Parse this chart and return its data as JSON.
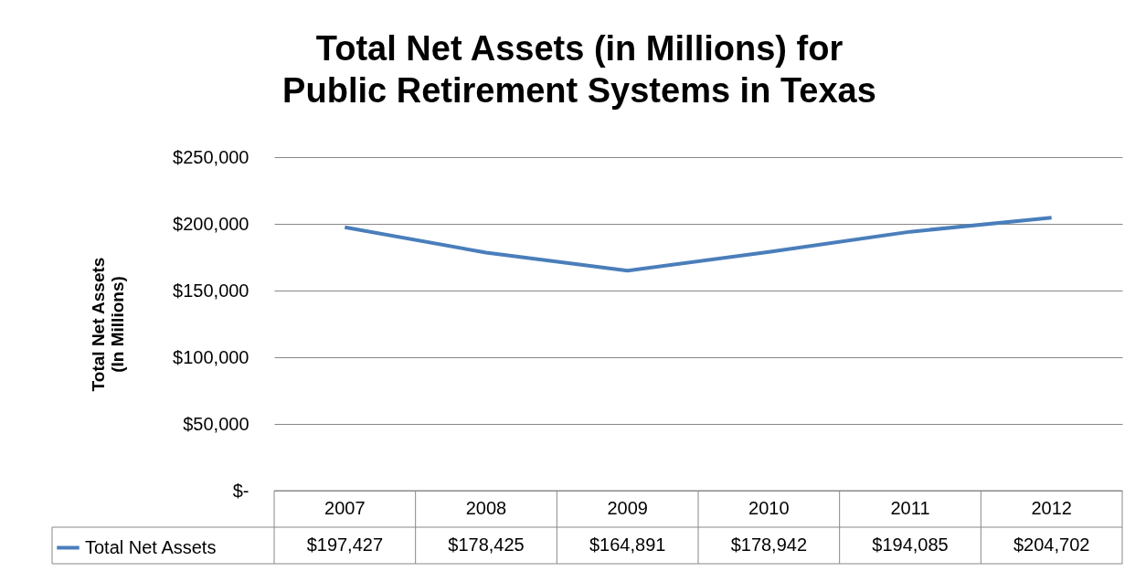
{
  "chart_data": {
    "type": "line",
    "title": "Total Net Assets (in Millions) for\nPublic Retirement Systems in Texas",
    "ylabel": "Total Net Assets\n(In Millions)",
    "categories": [
      "2007",
      "2008",
      "2009",
      "2010",
      "2011",
      "2012"
    ],
    "series": [
      {
        "name": "Total Net Assets",
        "color": "#4a7ebb",
        "values": [
          197427,
          178425,
          164891,
          178942,
          194085,
          204702
        ],
        "value_labels": [
          "$197,427",
          "$178,425",
          "$164,891",
          "$178,942",
          "$194,085",
          "$204,702"
        ]
      }
    ],
    "ylim": [
      0,
      250000
    ],
    "yticks": [
      {
        "value": 0,
        "label": "$-"
      },
      {
        "value": 50000,
        "label": "$50,000"
      },
      {
        "value": 100000,
        "label": "$100,000"
      },
      {
        "value": 150000,
        "label": "$150,000"
      },
      {
        "value": 200000,
        "label": "$200,000"
      },
      {
        "value": 250000,
        "label": "$250,000"
      }
    ],
    "grid": "y",
    "legend": "bottom left",
    "marker": "none",
    "line_style": "solid"
  }
}
